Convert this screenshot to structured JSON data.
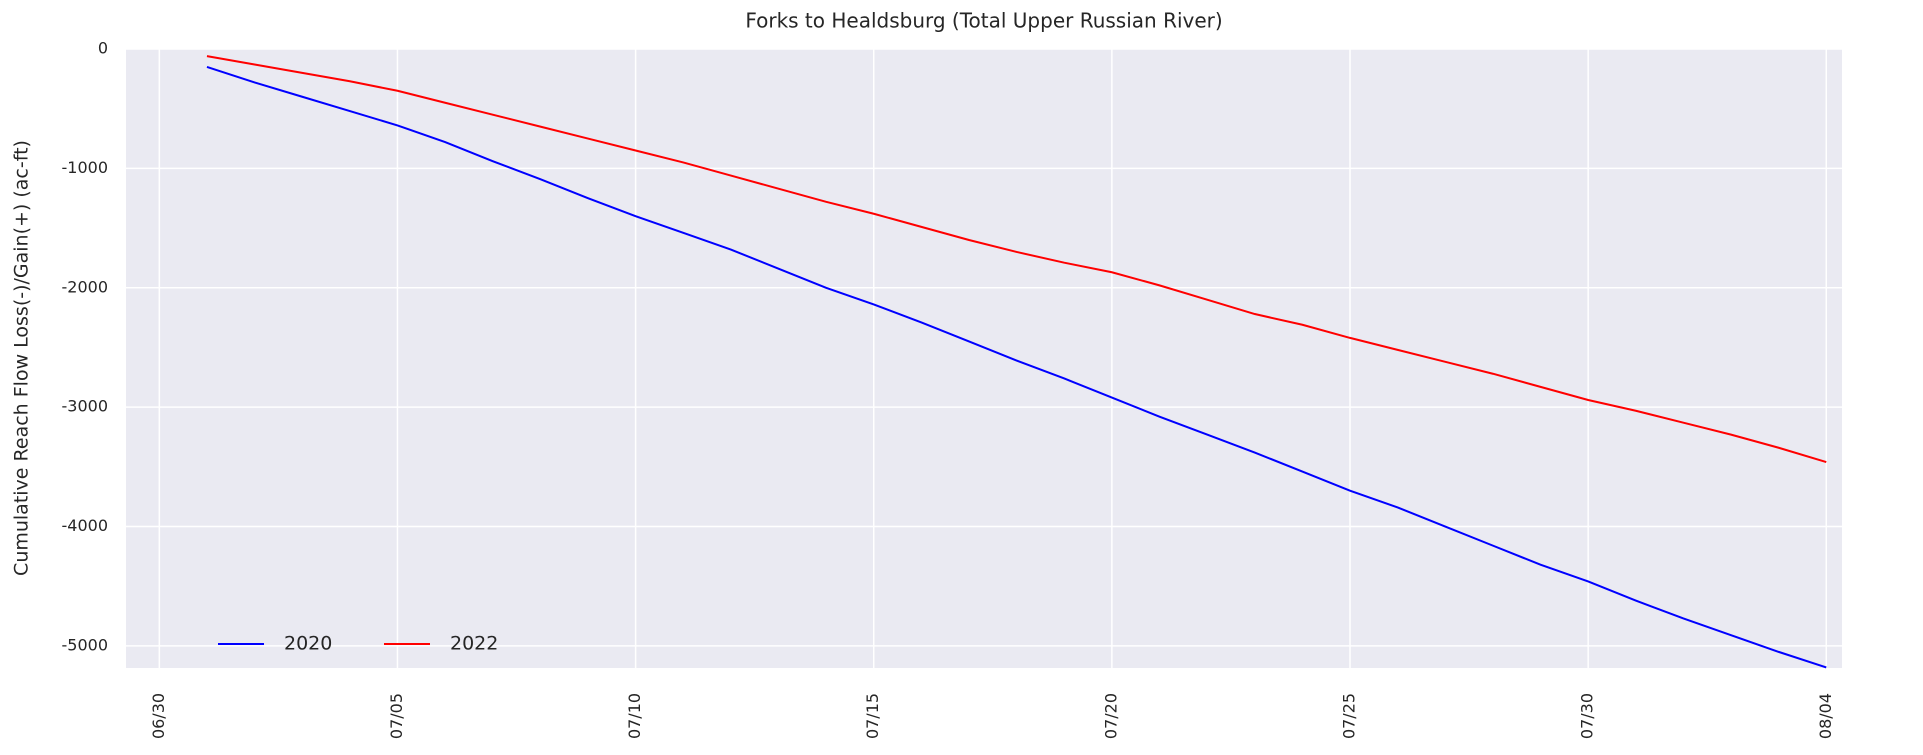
{
  "chart_data": {
    "type": "line",
    "title": "Forks to Healdsburg (Total Upper Russian River)",
    "ylabel": "Cumulative Reach Flow Loss(-)/Gain(+) (ac-ft)",
    "categories": [
      "06/30",
      null,
      null,
      null,
      null,
      "07/05",
      null,
      null,
      null,
      null,
      "07/10",
      null,
      null,
      null,
      null,
      "07/15",
      null,
      null,
      null,
      null,
      "07/20",
      null,
      null,
      null,
      null,
      "07/25",
      null,
      null,
      null,
      null,
      "07/30",
      null,
      null,
      null,
      null,
      "08/04"
    ],
    "series": [
      {
        "name": "2020",
        "color": "#0000ff",
        "values": [
          null,
          -150,
          -280,
          -400,
          -520,
          -640,
          -780,
          -940,
          -1090,
          -1250,
          -1400,
          -1540,
          -1680,
          -1840,
          -2000,
          -2140,
          -2290,
          -2450,
          -2610,
          -2760,
          -2920,
          -3080,
          -3230,
          -3380,
          -3540,
          -3700,
          -3840,
          -4000,
          -4160,
          -4320,
          -4460,
          -4620,
          -4770,
          -4910,
          -5050,
          -5180
        ]
      },
      {
        "name": "2022",
        "color": "#ff0000",
        "values": [
          null,
          -60,
          -130,
          -200,
          -270,
          -350,
          -450,
          -550,
          -650,
          -750,
          -850,
          -950,
          -1060,
          -1170,
          -1280,
          -1380,
          -1490,
          -1600,
          -1700,
          -1790,
          -1870,
          -1980,
          -2100,
          -2220,
          -2310,
          -2420,
          -2520,
          -2620,
          -2720,
          -2830,
          -2940,
          -3030,
          -3130,
          -3230,
          -3340,
          -3460
        ]
      }
    ],
    "ylim": [
      -5185,
      0
    ],
    "yticks": [
      -5000,
      -4000,
      -3000,
      -2000,
      -1000,
      0
    ],
    "grid": true,
    "legend": "lower left"
  }
}
